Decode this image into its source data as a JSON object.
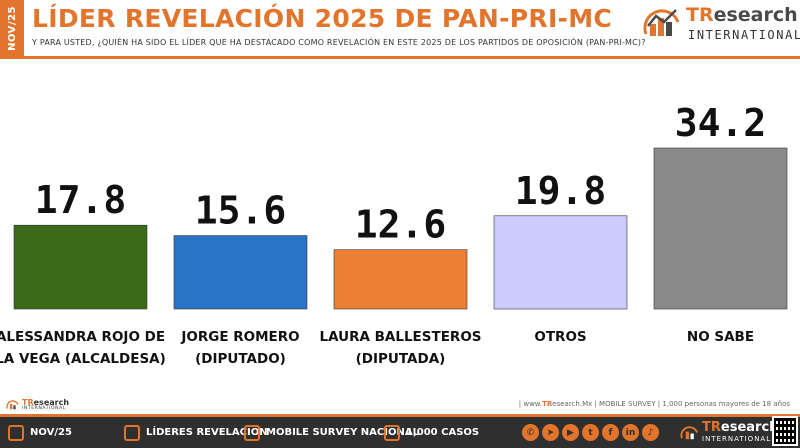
{
  "header": {
    "side_tab": "NOV/25",
    "title": "LÍDER REVELACIÓN 2025 DE PAN-PRI-MC",
    "subtitle": "Y PARA USTED, ¿QUIÉN HA SIDO EL LÍDER QUE HA DESTACADO COMO REVELACIÓN EN ESTE 2025 DE LOS PARTIDOS DE OPOSICIÓN (PAN-PRI-MC)?"
  },
  "brand": {
    "name_a": "TR",
    "name_b": "esearch",
    "sub": "INTERNATIONAL",
    "accent": "#e2742c"
  },
  "chart_data": {
    "type": "bar",
    "title": "LÍDER REVELACIÓN 2025 DE PAN-PRI-MC",
    "xlabel": "",
    "ylabel": "",
    "ylim": [
      0,
      34.2
    ],
    "grid": false,
    "categories": [
      [
        "ALESSANDRA ROJO DE",
        "LA VEGA (ALCALDESA)"
      ],
      [
        "JORGE ROMERO",
        "(DIPUTADO)"
      ],
      [
        "LAURA BALLESTEROS",
        "(DIPUTADA)"
      ],
      [
        "OTROS"
      ],
      [
        "NO SABE"
      ]
    ],
    "values": [
      17.8,
      15.6,
      12.6,
      19.8,
      34.2
    ],
    "value_labels": [
      "17.8",
      "15.6",
      "12.6",
      "19.8",
      "34.2"
    ],
    "colors": [
      "#3a6b18",
      "#2a73c8",
      "#ec7f33",
      "#ccccfc",
      "#8a8a8a"
    ]
  },
  "source_line": {
    "prefix": "| www.",
    "site_a": "TR",
    "site_b": "esearch.Mx",
    "rest": " | MOBILE SURVEY | 1,000 personas mayores de 18 años"
  },
  "footer": {
    "date": "NOV/25",
    "topic": "LÍDERES REVELACIÓN",
    "survey": "MOBILE SURVEY NACIONAL",
    "cases": "1,000 CASOS",
    "social_icons": [
      "whatsapp-icon",
      "telegram-icon",
      "youtube-icon",
      "twitter-icon",
      "facebook-icon",
      "linkedin-icon",
      "tiktok-icon"
    ],
    "social_glyphs": [
      "✆",
      "➤",
      "▶",
      "t",
      "f",
      "in",
      "♪"
    ]
  }
}
